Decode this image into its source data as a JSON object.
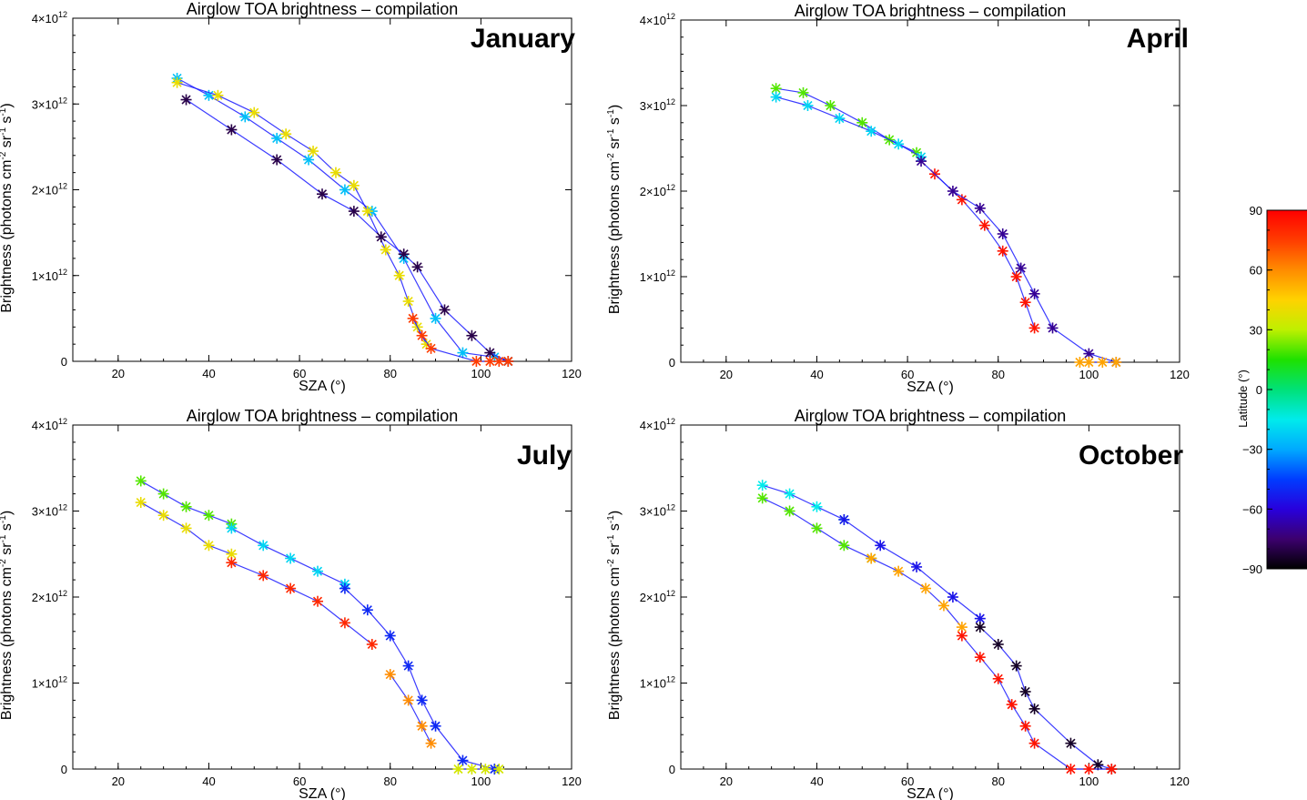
{
  "chart_data": [
    {
      "type": "scatter",
      "title": "Airglow TOA brightness  – compilation",
      "panel_label": "January",
      "xlabel": "SZA (°)",
      "ylabel_parts": [
        "Brightness (photons cm",
        "-2",
        " sr",
        "-1",
        " s",
        "-1",
        ")"
      ],
      "xlim": [
        10,
        120
      ],
      "ylim": [
        0,
        4000000000000.0
      ],
      "x_ticks": [
        20,
        40,
        60,
        80,
        100,
        120
      ],
      "y_ticks": [
        {
          "value": 0,
          "base": "0",
          "exp": ""
        },
        {
          "value": 1000000000000.0,
          "base": "1×10",
          "exp": "12"
        },
        {
          "value": 2000000000000.0,
          "base": "2×10",
          "exp": "12"
        },
        {
          "value": 3000000000000.0,
          "base": "3×10",
          "exp": "12"
        },
        {
          "value": 4000000000000.0,
          "base": "4×10",
          "exp": "12"
        }
      ],
      "series": [
        {
          "latitude": -25,
          "x": [
            33,
            40,
            48,
            55,
            62,
            70,
            76,
            83,
            90,
            96,
            103,
            106
          ],
          "y": [
            3300000000000.0,
            3100000000000.0,
            2850000000000.0,
            2600000000000.0,
            2350000000000.0,
            2000000000000.0,
            1750000000000.0,
            1200000000000.0,
            500000000000.0,
            100000000000.0,
            50000000000.0,
            0
          ]
        },
        {
          "latitude": 40,
          "x": [
            33,
            42,
            50,
            57,
            63,
            68,
            72,
            75,
            79,
            82,
            84,
            86,
            88
          ],
          "y": [
            3250000000000.0,
            3100000000000.0,
            2900000000000.0,
            2650000000000.0,
            2450000000000.0,
            2200000000000.0,
            2050000000000.0,
            1750000000000.0,
            1300000000000.0,
            1000000000000.0,
            700000000000.0,
            400000000000.0,
            200000000000.0
          ]
        },
        {
          "latitude": -80,
          "x": [
            35,
            45,
            55,
            65,
            72,
            78,
            83,
            86,
            92,
            98,
            102,
            106
          ],
          "y": [
            3050000000000.0,
            2700000000000.0,
            2350000000000.0,
            1950000000000.0,
            1750000000000.0,
            1450000000000.0,
            1250000000000.0,
            1100000000000.0,
            600000000000.0,
            300000000000.0,
            100000000000.0,
            0
          ]
        },
        {
          "latitude": 75,
          "x": [
            85,
            87,
            89,
            99,
            102,
            104,
            106
          ],
          "y": [
            500000000000.0,
            300000000000.0,
            150000000000.0,
            0,
            0,
            0,
            0
          ]
        }
      ]
    },
    {
      "type": "scatter",
      "title": "Airglow TOA brightness  – compilation",
      "panel_label": "April",
      "xlabel": "SZA (°)",
      "ylabel_parts": [
        "Brightness (photons cm",
        "-2",
        " sr",
        "-1",
        " s",
        "-1",
        ")"
      ],
      "xlim": [
        10,
        120
      ],
      "ylim": [
        0,
        4000000000000.0
      ],
      "x_ticks": [
        20,
        40,
        60,
        80,
        100,
        120
      ],
      "y_ticks": [
        {
          "value": 0,
          "base": "0",
          "exp": ""
        },
        {
          "value": 1000000000000.0,
          "base": "1×10",
          "exp": "12"
        },
        {
          "value": 2000000000000.0,
          "base": "2×10",
          "exp": "12"
        },
        {
          "value": 3000000000000.0,
          "base": "3×10",
          "exp": "12"
        },
        {
          "value": 4000000000000.0,
          "base": "4×10",
          "exp": "12"
        }
      ],
      "series": [
        {
          "latitude": 20,
          "x": [
            31,
            37,
            43,
            50,
            56,
            62
          ],
          "y": [
            3200000000000.0,
            3150000000000.0,
            3000000000000.0,
            2800000000000.0,
            2600000000000.0,
            2450000000000.0
          ]
        },
        {
          "latitude": -20,
          "x": [
            31,
            38,
            45,
            52,
            58,
            63
          ],
          "y": [
            3100000000000.0,
            3000000000000.0,
            2850000000000.0,
            2700000000000.0,
            2550000000000.0,
            2400000000000.0
          ]
        },
        {
          "latitude": 85,
          "x": [
            66,
            72,
            77,
            81,
            84,
            86,
            88
          ],
          "y": [
            2200000000000.0,
            1900000000000.0,
            1600000000000.0,
            1300000000000.0,
            1000000000000.0,
            700000000000.0,
            400000000000.0
          ]
        },
        {
          "latitude": -70,
          "x": [
            63,
            70,
            76,
            81,
            85,
            88,
            92,
            100,
            106
          ],
          "y": [
            2350000000000.0,
            2000000000000.0,
            1800000000000.0,
            1500000000000.0,
            1100000000000.0,
            800000000000.0,
            400000000000.0,
            100000000000.0,
            0
          ]
        },
        {
          "latitude": 55,
          "x": [
            98,
            100,
            103,
            106
          ],
          "y": [
            0,
            0,
            0,
            0
          ]
        }
      ]
    },
    {
      "type": "scatter",
      "title": "Airglow TOA brightness  – compilation",
      "panel_label": "July",
      "xlabel": "SZA (°)",
      "ylabel_parts": [
        "Brightness (photons cm",
        "-2",
        " sr",
        "-1",
        " s",
        "-1",
        ")"
      ],
      "xlim": [
        10,
        120
      ],
      "ylim": [
        0,
        4000000000000.0
      ],
      "x_ticks": [
        20,
        40,
        60,
        80,
        100,
        120
      ],
      "y_ticks": [
        {
          "value": 0,
          "base": "0",
          "exp": ""
        },
        {
          "value": 1000000000000.0,
          "base": "1×10",
          "exp": "12"
        },
        {
          "value": 2000000000000.0,
          "base": "2×10",
          "exp": "12"
        },
        {
          "value": 3000000000000.0,
          "base": "3×10",
          "exp": "12"
        },
        {
          "value": 4000000000000.0,
          "base": "4×10",
          "exp": "12"
        }
      ],
      "series": [
        {
          "latitude": 20,
          "x": [
            25,
            30,
            35,
            40,
            45
          ],
          "y": [
            3350000000000.0,
            3200000000000.0,
            3050000000000.0,
            2950000000000.0,
            2850000000000.0
          ]
        },
        {
          "latitude": -20,
          "x": [
            45,
            52,
            58,
            64,
            70
          ],
          "y": [
            2800000000000.0,
            2600000000000.0,
            2450000000000.0,
            2300000000000.0,
            2150000000000.0
          ]
        },
        {
          "latitude": -50,
          "x": [
            70,
            75,
            80,
            84,
            87,
            90,
            96,
            103
          ],
          "y": [
            2100000000000.0,
            1850000000000.0,
            1550000000000.0,
            1200000000000.0,
            800000000000.0,
            500000000000.0,
            100000000000.0,
            0
          ]
        },
        {
          "latitude": 40,
          "x": [
            25,
            30,
            35,
            40,
            45
          ],
          "y": [
            3100000000000.0,
            2950000000000.0,
            2800000000000.0,
            2600000000000.0,
            2500000000000.0
          ]
        },
        {
          "latitude": 80,
          "x": [
            45,
            52,
            58,
            64,
            70,
            76
          ],
          "y": [
            2400000000000.0,
            2250000000000.0,
            2100000000000.0,
            1950000000000.0,
            1700000000000.0,
            1450000000000.0
          ]
        },
        {
          "latitude": 60,
          "x": [
            80,
            84,
            87,
            89
          ],
          "y": [
            1100000000000.0,
            800000000000.0,
            500000000000.0,
            300000000000.0
          ]
        },
        {
          "latitude": 35,
          "x": [
            95,
            98,
            101,
            104
          ],
          "y": [
            0,
            0,
            0,
            0
          ]
        }
      ]
    },
    {
      "type": "scatter",
      "title": "Airglow TOA brightness  – compilation",
      "panel_label": "October",
      "xlabel": "SZA (°)",
      "ylabel_parts": [
        "Brightness (photons cm",
        "-2",
        " sr",
        "-1",
        " s",
        "-1",
        ")"
      ],
      "xlim": [
        10,
        120
      ],
      "ylim": [
        0,
        4000000000000.0
      ],
      "x_ticks": [
        20,
        40,
        60,
        80,
        100,
        120
      ],
      "y_ticks": [
        {
          "value": 0,
          "base": "0",
          "exp": ""
        },
        {
          "value": 1000000000000.0,
          "base": "1×10",
          "exp": "12"
        },
        {
          "value": 2000000000000.0,
          "base": "2×10",
          "exp": "12"
        },
        {
          "value": 3000000000000.0,
          "base": "3×10",
          "exp": "12"
        },
        {
          "value": 4000000000000.0,
          "base": "4×10",
          "exp": "12"
        }
      ],
      "series": [
        {
          "latitude": -15,
          "x": [
            28,
            34,
            40,
            46
          ],
          "y": [
            3300000000000.0,
            3200000000000.0,
            3050000000000.0,
            2900000000000.0
          ]
        },
        {
          "latitude": -55,
          "x": [
            46,
            54,
            62,
            70,
            76
          ],
          "y": [
            2900000000000.0,
            2600000000000.0,
            2350000000000.0,
            2000000000000.0,
            1750000000000.0
          ]
        },
        {
          "latitude": -85,
          "x": [
            76,
            80,
            84,
            86,
            88,
            96,
            102,
            105
          ],
          "y": [
            1650000000000.0,
            1450000000000.0,
            1200000000000.0,
            900000000000.0,
            700000000000.0,
            300000000000.0,
            50000000000.0,
            0
          ]
        },
        {
          "latitude": 20,
          "x": [
            28,
            34,
            40,
            46,
            52
          ],
          "y": [
            3150000000000.0,
            3000000000000.0,
            2800000000000.0,
            2600000000000.0,
            2450000000000.0
          ]
        },
        {
          "latitude": 55,
          "x": [
            52,
            58,
            64,
            68,
            72
          ],
          "y": [
            2450000000000.0,
            2300000000000.0,
            2100000000000.0,
            1900000000000.0,
            1650000000000.0
          ]
        },
        {
          "latitude": 85,
          "x": [
            72,
            76,
            80,
            83,
            86,
            88,
            96,
            100,
            105
          ],
          "y": [
            1550000000000.0,
            1300000000000.0,
            1050000000000.0,
            750000000000.0,
            500000000000.0,
            300000000000.0,
            0,
            0,
            0
          ]
        }
      ]
    }
  ],
  "colorbar": {
    "label": "Latitude (°)",
    "range": [
      -90,
      90
    ],
    "ticks": [
      "90",
      "60",
      "30",
      "0",
      "−30",
      "−60",
      "−90"
    ]
  }
}
